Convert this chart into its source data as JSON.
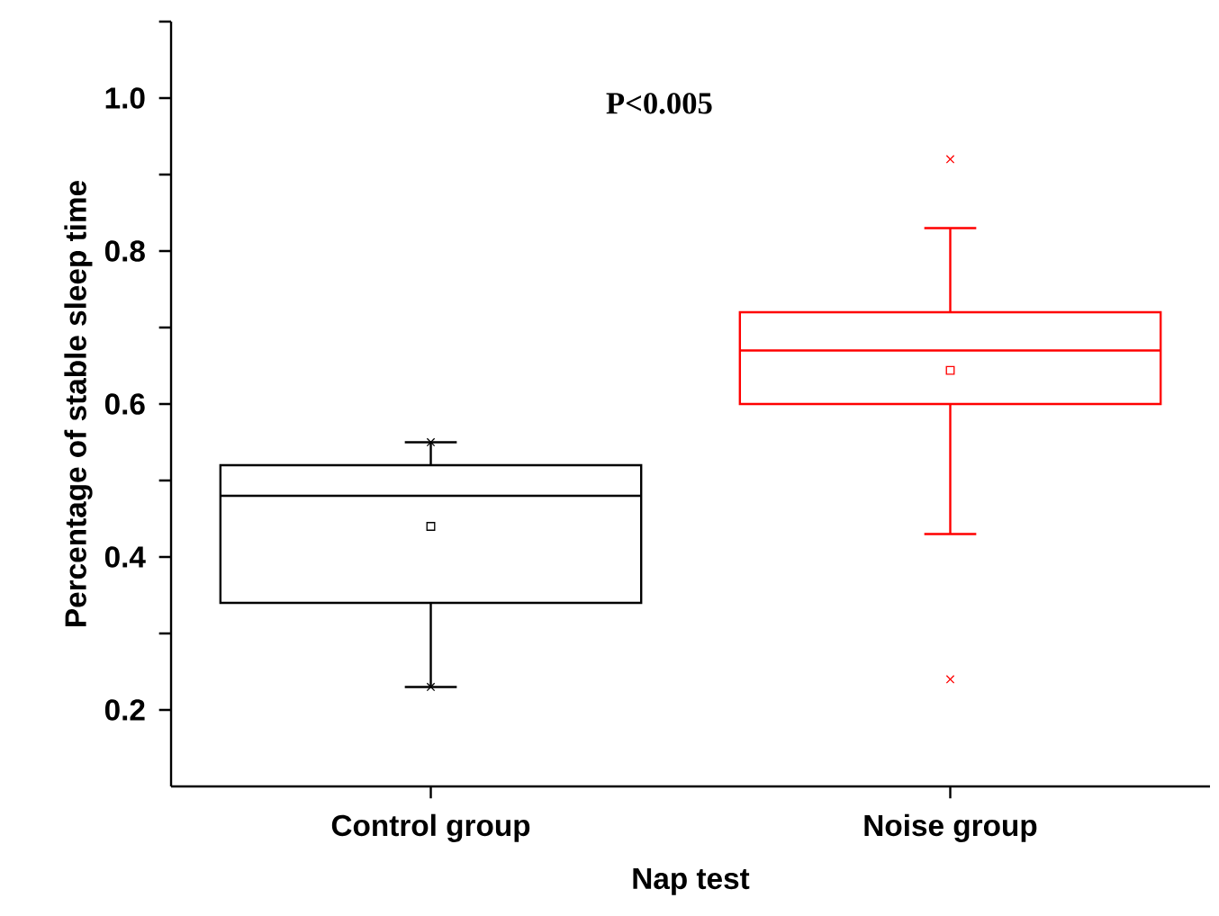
{
  "chart_data": {
    "type": "box",
    "xlabel": "Nap test",
    "ylabel": "Percentage of stable sleep time",
    "annotations": [
      "P<0.005"
    ],
    "categories": [
      "Control group",
      "Noise group"
    ],
    "colors": [
      "#000000",
      "#ff0000"
    ],
    "boxes": [
      {
        "low": 0.23,
        "q1": 0.34,
        "median": 0.48,
        "q3": 0.52,
        "high": 0.55,
        "mean": 0.44,
        "outliers": [
          0.55,
          0.23
        ]
      },
      {
        "low": 0.43,
        "q1": 0.6,
        "median": 0.67,
        "q3": 0.72,
        "high": 0.83,
        "mean": 0.644,
        "outliers": [
          0.92,
          0.24
        ]
      }
    ],
    "ylim": [
      0.1,
      1.1
    ],
    "yticks": [
      0.2,
      {
        "value": 0.3,
        "label": null
      },
      0.4,
      {
        "value": 0.5,
        "label": null
      },
      0.6,
      {
        "value": 0.7,
        "label": null
      },
      0.8,
      {
        "value": 0.9,
        "label": null
      },
      {
        "value": 1.0,
        "label": "1.0"
      },
      {
        "value": 1.1,
        "label": null
      }
    ],
    "marker": "square",
    "grid": false
  }
}
